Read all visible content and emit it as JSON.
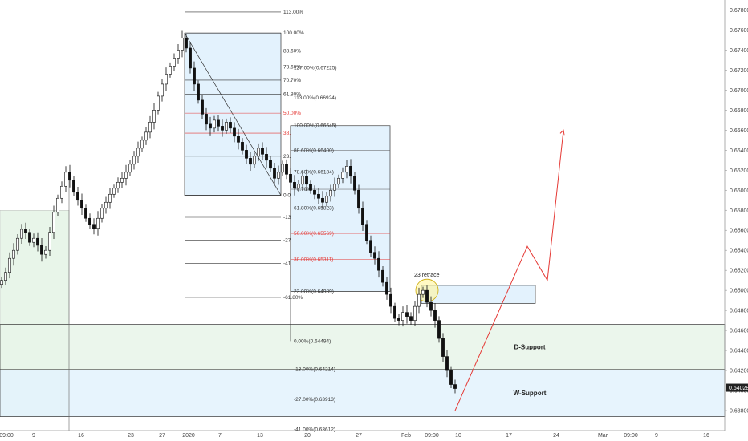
{
  "chart_data": {
    "type": "candlestick",
    "title": "",
    "price_axis": {
      "range": [
        0.636,
        0.679
      ],
      "ticks": [
        "0.67800",
        "0.67600",
        "0.67400",
        "0.67200",
        "0.67000",
        "0.66800",
        "0.66600",
        "0.66400",
        "0.66200",
        "0.66000",
        "0.65800",
        "0.65600",
        "0.65400",
        "0.65200",
        "0.65000",
        "0.64800",
        "0.64600",
        "0.64400",
        "0.64200",
        "0.64000",
        "0.63800",
        "0.63600"
      ],
      "current_price": "0.64028"
    },
    "time_axis": {
      "ticks": [
        "09:00",
        "9",
        "16",
        "23",
        "27",
        "2020",
        "7",
        "13",
        "20",
        "27",
        "Feb",
        "09:00",
        "10",
        "17",
        "24",
        "Mar",
        "09:00",
        "9",
        "16"
      ]
    },
    "fib_levels_primary": [
      {
        "label": "113.00%",
        "price": 0.6778
      },
      {
        "label": "100.00%",
        "price": 0.6757
      },
      {
        "label": "88.60%",
        "price": 0.6739
      },
      {
        "label": "78.60%",
        "price": 0.6723
      },
      {
        "label": "70.70%",
        "price": 0.671
      },
      {
        "label": "61.80%",
        "price": 0.6696
      },
      {
        "label": "50.00%",
        "price": 0.6677,
        "red": true
      },
      {
        "label": "38.00%",
        "price": 0.6657,
        "red": true
      },
      {
        "label": "23.60%",
        "price": 0.6634
      },
      {
        "label": "0.00%",
        "price": 0.6595
      },
      {
        "label": "-13.00%",
        "price": 0.6573
      },
      {
        "label": "-27.00%",
        "price": 0.655
      },
      {
        "label": "-41.00%",
        "price": 0.6527
      },
      {
        "label": "-61.80%",
        "price": 0.6493
      }
    ],
    "fib_levels_secondary": [
      {
        "label": "127.00%(0.67225)",
        "price": 0.67225
      },
      {
        "label": "113.00%(0.66924)",
        "price": 0.66924
      },
      {
        "label": "100.00%(0.66645)",
        "price": 0.66645
      },
      {
        "label": "88.60%(0.66400)",
        "price": 0.664
      },
      {
        "label": "78.60%(0.66184)",
        "price": 0.66184
      },
      {
        "label": "70.70%",
        "price": 0.6601
      },
      {
        "label": "61.80%(0.65823)",
        "price": 0.65823
      },
      {
        "label": "50.00%(0.65569)",
        "price": 0.65569,
        "red": true
      },
      {
        "label": "38.00%(0.65311)",
        "price": 0.65311,
        "red": true
      },
      {
        "label": "23.00%(0.64989)",
        "price": 0.64989
      },
      {
        "label": "0.00%(0.64494)",
        "price": 0.64494
      },
      {
        "label": "-13.00%(0.64214)",
        "price": 0.64214
      },
      {
        "label": "-27.00%(0.63913)",
        "price": 0.63913
      },
      {
        "label": "-41.00%(0.63612)",
        "price": 0.63612
      }
    ],
    "zones": [
      {
        "label": "D-Support",
        "top": 0.6466,
        "bottom": 0.6421
      },
      {
        "label": "W-Support",
        "top": 0.6421,
        "bottom": 0.6374
      }
    ],
    "annotation": "23 retrace",
    "close_path": [
      0.651,
      0.6518,
      0.6532,
      0.654,
      0.6552,
      0.6561,
      0.6558,
      0.6548,
      0.6552,
      0.6545,
      0.6536,
      0.654,
      0.6558,
      0.6578,
      0.6592,
      0.6604,
      0.6618,
      0.661,
      0.6598,
      0.659,
      0.6582,
      0.6572,
      0.6566,
      0.6562,
      0.6572,
      0.6582,
      0.6588,
      0.6596,
      0.6602,
      0.6608,
      0.6612,
      0.6618,
      0.6626,
      0.6634,
      0.6642,
      0.665,
      0.6658,
      0.6668,
      0.668,
      0.6694,
      0.6706,
      0.6716,
      0.6724,
      0.6732,
      0.674,
      0.6752,
      0.6742,
      0.6722,
      0.6706,
      0.669,
      0.6676,
      0.6666,
      0.6662,
      0.667,
      0.6664,
      0.666,
      0.6668,
      0.6662,
      0.6654,
      0.6648,
      0.664,
      0.6632,
      0.6626,
      0.6634,
      0.6642,
      0.6636,
      0.663,
      0.6622,
      0.6612,
      0.6618,
      0.6626,
      0.6616,
      0.6608,
      0.6602,
      0.6606,
      0.6614,
      0.6606,
      0.66,
      0.6596,
      0.6592,
      0.6588,
      0.6594,
      0.66,
      0.6606,
      0.6612,
      0.6618,
      0.6624,
      0.6614,
      0.66,
      0.6582,
      0.6566,
      0.655,
      0.6538,
      0.6532,
      0.652,
      0.6508,
      0.6496,
      0.6484,
      0.6472,
      0.647,
      0.6478,
      0.6474,
      0.647,
      0.6484,
      0.6496,
      0.65,
      0.6488,
      0.648,
      0.647,
      0.6452,
      0.6434,
      0.642,
      0.6406,
      0.6402
    ],
    "projection": [
      {
        "i": 113,
        "p": 0.638
      },
      {
        "i": 131,
        "p": 0.6544
      },
      {
        "i": 136,
        "p": 0.651
      },
      {
        "i": 140,
        "p": 0.666
      }
    ]
  }
}
